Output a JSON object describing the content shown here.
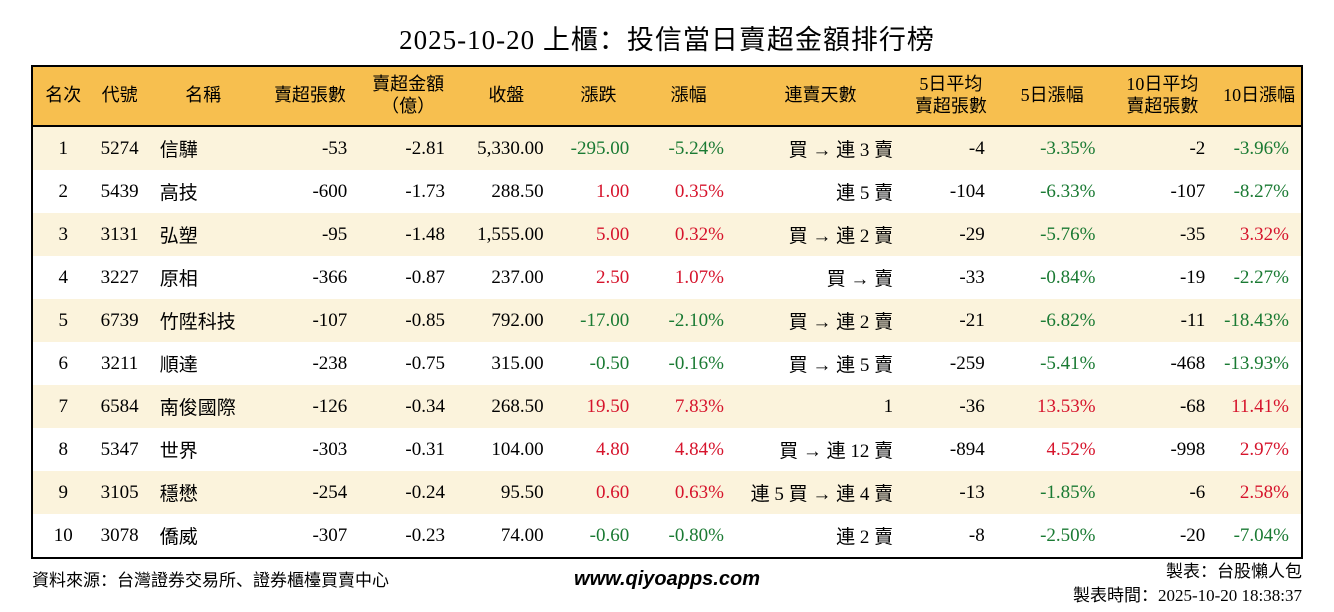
{
  "title": "2025-10-20 上櫃：投信當日賣超金額排行榜",
  "colors": {
    "header_bg": "#F7BF4F",
    "row_alt_bg": "#FBF3DC",
    "up_red": "#D6142C",
    "down_green": "#1A7A33"
  },
  "table": {
    "headers": [
      "名次",
      "代號",
      "名稱",
      "賣超張數",
      "賣超金額\n（億）",
      "收盤",
      "漲跌",
      "漲幅",
      "連賣天數",
      "5日平均\n賣超張數",
      "5日漲幅",
      "10日平均\n賣超張數",
      "10日漲幅"
    ],
    "rows": [
      {
        "rank": "1",
        "code": "5274",
        "name": "信驊",
        "sell_volume": "-53",
        "sell_amount_100m": "-2.81",
        "close": "5,330.00",
        "change": "-295.00",
        "change_pct": "-5.24%",
        "streak": "買 → 連 3 賣",
        "avg5_sell_volume": "-4",
        "change_pct_5d": "-3.35%",
        "avg10_sell_volume": "-2",
        "change_pct_10d": "-3.96%"
      },
      {
        "rank": "2",
        "code": "5439",
        "name": "高技",
        "sell_volume": "-600",
        "sell_amount_100m": "-1.73",
        "close": "288.50",
        "change": "1.00",
        "change_pct": "0.35%",
        "streak": "連 5 賣",
        "avg5_sell_volume": "-104",
        "change_pct_5d": "-6.33%",
        "avg10_sell_volume": "-107",
        "change_pct_10d": "-8.27%"
      },
      {
        "rank": "3",
        "code": "3131",
        "name": "弘塑",
        "sell_volume": "-95",
        "sell_amount_100m": "-1.48",
        "close": "1,555.00",
        "change": "5.00",
        "change_pct": "0.32%",
        "streak": "買 → 連 2 賣",
        "avg5_sell_volume": "-29",
        "change_pct_5d": "-5.76%",
        "avg10_sell_volume": "-35",
        "change_pct_10d": "3.32%"
      },
      {
        "rank": "4",
        "code": "3227",
        "name": "原相",
        "sell_volume": "-366",
        "sell_amount_100m": "-0.87",
        "close": "237.00",
        "change": "2.50",
        "change_pct": "1.07%",
        "streak": "買 → 賣",
        "avg5_sell_volume": "-33",
        "change_pct_5d": "-0.84%",
        "avg10_sell_volume": "-19",
        "change_pct_10d": "-2.27%"
      },
      {
        "rank": "5",
        "code": "6739",
        "name": "竹陞科技",
        "sell_volume": "-107",
        "sell_amount_100m": "-0.85",
        "close": "792.00",
        "change": "-17.00",
        "change_pct": "-2.10%",
        "streak": "買 → 連 2 賣",
        "avg5_sell_volume": "-21",
        "change_pct_5d": "-6.82%",
        "avg10_sell_volume": "-11",
        "change_pct_10d": "-18.43%"
      },
      {
        "rank": "6",
        "code": "3211",
        "name": "順達",
        "sell_volume": "-238",
        "sell_amount_100m": "-0.75",
        "close": "315.00",
        "change": "-0.50",
        "change_pct": "-0.16%",
        "streak": "買 → 連 5 賣",
        "avg5_sell_volume": "-259",
        "change_pct_5d": "-5.41%",
        "avg10_sell_volume": "-468",
        "change_pct_10d": "-13.93%"
      },
      {
        "rank": "7",
        "code": "6584",
        "name": "南俊國際",
        "sell_volume": "-126",
        "sell_amount_100m": "-0.34",
        "close": "268.50",
        "change": "19.50",
        "change_pct": "7.83%",
        "streak": "1",
        "avg5_sell_volume": "-36",
        "change_pct_5d": "13.53%",
        "avg10_sell_volume": "-68",
        "change_pct_10d": "11.41%"
      },
      {
        "rank": "8",
        "code": "5347",
        "name": "世界",
        "sell_volume": "-303",
        "sell_amount_100m": "-0.31",
        "close": "104.00",
        "change": "4.80",
        "change_pct": "4.84%",
        "streak": "買 → 連 12 賣",
        "avg5_sell_volume": "-894",
        "change_pct_5d": "4.52%",
        "avg10_sell_volume": "-998",
        "change_pct_10d": "2.97%"
      },
      {
        "rank": "9",
        "code": "3105",
        "name": "穩懋",
        "sell_volume": "-254",
        "sell_amount_100m": "-0.24",
        "close": "95.50",
        "change": "0.60",
        "change_pct": "0.63%",
        "streak": "連 5 買 → 連 4 賣",
        "avg5_sell_volume": "-13",
        "change_pct_5d": "-1.85%",
        "avg10_sell_volume": "-6",
        "change_pct_10d": "2.58%"
      },
      {
        "rank": "10",
        "code": "3078",
        "name": "僑威",
        "sell_volume": "-307",
        "sell_amount_100m": "-0.23",
        "close": "74.00",
        "change": "-0.60",
        "change_pct": "-0.80%",
        "streak": "連 2 賣",
        "avg5_sell_volume": "-8",
        "change_pct_5d": "-2.50%",
        "avg10_sell_volume": "-20",
        "change_pct_10d": "-7.04%"
      }
    ]
  },
  "footer": {
    "source": "資料來源：台灣證券交易所、證券櫃檯買賣中心",
    "website": "www.qiyoapps.com",
    "maker": "製表：台股懶人包",
    "made_at": "製表時間：2025-10-20 18:38:37"
  }
}
